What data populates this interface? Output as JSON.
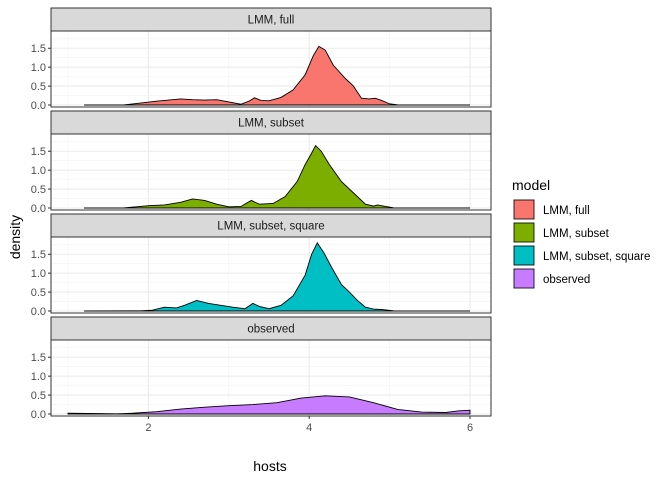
{
  "chart_data": {
    "type": "area",
    "subtype": "faceted density plot",
    "xlabel": "hosts",
    "ylabel": "density",
    "xlim": [
      1,
      6
    ],
    "ylim": [
      0,
      1.85
    ],
    "x_ticks": [
      2,
      4,
      6
    ],
    "y_ticks": [
      "0.0",
      "0.5",
      "1.0",
      "1.5"
    ],
    "y_tick_values": [
      0,
      0.5,
      1.0,
      1.5
    ],
    "grid": true,
    "legend": {
      "title": "model",
      "position": "right",
      "entries": [
        "LMM, full",
        "LMM, subset",
        "LMM, subset, square",
        "observed"
      ]
    },
    "panels": [
      {
        "name": "LMM, full",
        "color": "#F8766D",
        "points": [
          [
            1.2,
            0
          ],
          [
            1.7,
            0.005
          ],
          [
            1.9,
            0.05
          ],
          [
            2.1,
            0.1
          ],
          [
            2.25,
            0.13
          ],
          [
            2.4,
            0.16
          ],
          [
            2.55,
            0.14
          ],
          [
            2.7,
            0.13
          ],
          [
            2.85,
            0.14
          ],
          [
            3.0,
            0.08
          ],
          [
            3.15,
            0.02
          ],
          [
            3.25,
            0.1
          ],
          [
            3.32,
            0.19
          ],
          [
            3.4,
            0.12
          ],
          [
            3.5,
            0.11
          ],
          [
            3.65,
            0.2
          ],
          [
            3.8,
            0.4
          ],
          [
            3.95,
            0.8
          ],
          [
            4.05,
            1.3
          ],
          [
            4.12,
            1.55
          ],
          [
            4.2,
            1.45
          ],
          [
            4.3,
            1.05
          ],
          [
            4.45,
            0.7
          ],
          [
            4.55,
            0.5
          ],
          [
            4.65,
            0.18
          ],
          [
            4.75,
            0.16
          ],
          [
            4.82,
            0.18
          ],
          [
            4.9,
            0.12
          ],
          [
            5.0,
            0.03
          ],
          [
            5.1,
            0.005
          ],
          [
            6.0,
            0
          ]
        ]
      },
      {
        "name": "LMM, subset",
        "color": "#7CAE00",
        "points": [
          [
            1.2,
            0
          ],
          [
            1.7,
            0.005
          ],
          [
            1.85,
            0.03
          ],
          [
            2.0,
            0.06
          ],
          [
            2.2,
            0.08
          ],
          [
            2.4,
            0.15
          ],
          [
            2.55,
            0.24
          ],
          [
            2.7,
            0.2
          ],
          [
            2.85,
            0.1
          ],
          [
            3.0,
            0.03
          ],
          [
            3.15,
            0.04
          ],
          [
            3.28,
            0.2
          ],
          [
            3.38,
            0.1
          ],
          [
            3.55,
            0.12
          ],
          [
            3.7,
            0.3
          ],
          [
            3.85,
            0.7
          ],
          [
            3.95,
            1.15
          ],
          [
            4.03,
            1.45
          ],
          [
            4.08,
            1.65
          ],
          [
            4.15,
            1.5
          ],
          [
            4.25,
            1.15
          ],
          [
            4.4,
            0.7
          ],
          [
            4.55,
            0.4
          ],
          [
            4.7,
            0.1
          ],
          [
            4.8,
            0.05
          ],
          [
            4.85,
            0.08
          ],
          [
            4.95,
            0.04
          ],
          [
            5.05,
            0.005
          ],
          [
            6.0,
            0
          ]
        ]
      },
      {
        "name": "LMM, subset, square",
        "color": "#00BFC4",
        "points": [
          [
            1.2,
            0
          ],
          [
            1.9,
            0.005
          ],
          [
            2.05,
            0.02
          ],
          [
            2.2,
            0.1
          ],
          [
            2.35,
            0.08
          ],
          [
            2.45,
            0.15
          ],
          [
            2.6,
            0.28
          ],
          [
            2.75,
            0.2
          ],
          [
            2.9,
            0.15
          ],
          [
            3.05,
            0.1
          ],
          [
            3.2,
            0.06
          ],
          [
            3.3,
            0.2
          ],
          [
            3.38,
            0.12
          ],
          [
            3.5,
            0.06
          ],
          [
            3.65,
            0.15
          ],
          [
            3.8,
            0.4
          ],
          [
            3.95,
            0.95
          ],
          [
            4.03,
            1.5
          ],
          [
            4.1,
            1.8
          ],
          [
            4.18,
            1.55
          ],
          [
            4.28,
            1.15
          ],
          [
            4.4,
            0.7
          ],
          [
            4.5,
            0.5
          ],
          [
            4.6,
            0.28
          ],
          [
            4.7,
            0.1
          ],
          [
            4.8,
            0.05
          ],
          [
            4.9,
            0.04
          ],
          [
            5.05,
            0.005
          ],
          [
            6.0,
            0
          ]
        ]
      },
      {
        "name": "observed",
        "color": "#C77CFF",
        "points": [
          [
            1.0,
            0.02
          ],
          [
            1.4,
            0.01
          ],
          [
            1.6,
            0.005
          ],
          [
            1.8,
            0.02
          ],
          [
            2.1,
            0.06
          ],
          [
            2.4,
            0.13
          ],
          [
            2.7,
            0.18
          ],
          [
            3.0,
            0.22
          ],
          [
            3.3,
            0.25
          ],
          [
            3.6,
            0.3
          ],
          [
            3.9,
            0.42
          ],
          [
            4.2,
            0.48
          ],
          [
            4.5,
            0.45
          ],
          [
            4.8,
            0.3
          ],
          [
            5.1,
            0.12
          ],
          [
            5.4,
            0.05
          ],
          [
            5.7,
            0.04
          ],
          [
            5.85,
            0.08
          ],
          [
            6.0,
            0.1
          ]
        ]
      }
    ]
  }
}
